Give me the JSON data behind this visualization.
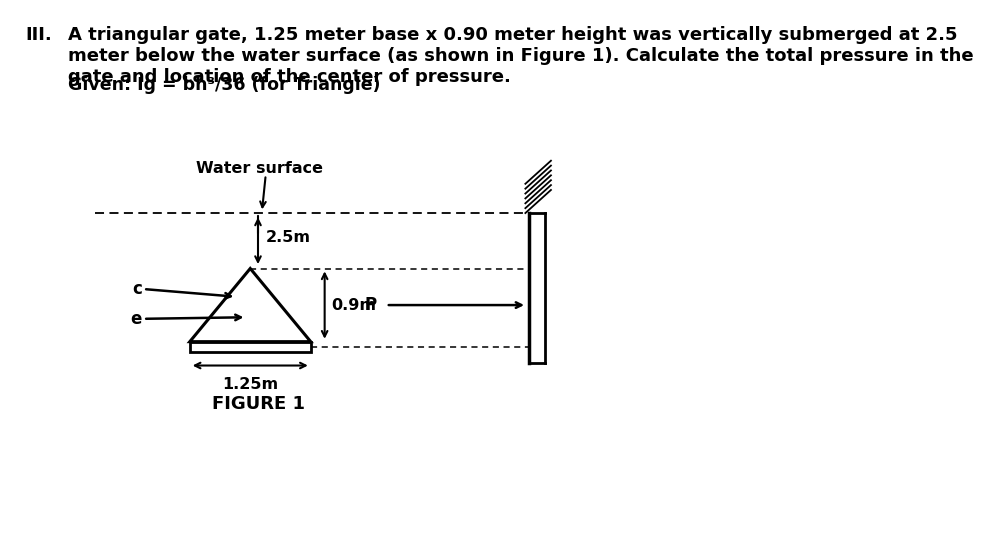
{
  "title_roman": "III.",
  "title_text": "A triangular gate, 1.25 meter base x 0.90 meter height was vertically submerged at 2.5\nmeter below the water surface (as shown in Figure 1). Calculate the total pressure in the\ngate and location of the center of pressure.",
  "given_text": "Given: Ig = bh³/36 (for Triangle)",
  "water_surface_label": "Water surface",
  "dim_25": "2.5m",
  "dim_09": "0.9m",
  "dim_125": "1.25m",
  "figure_label": "FIGURE 1",
  "label_c": "c",
  "label_e": "e",
  "label_P": "P",
  "bg_color": "#ffffff"
}
